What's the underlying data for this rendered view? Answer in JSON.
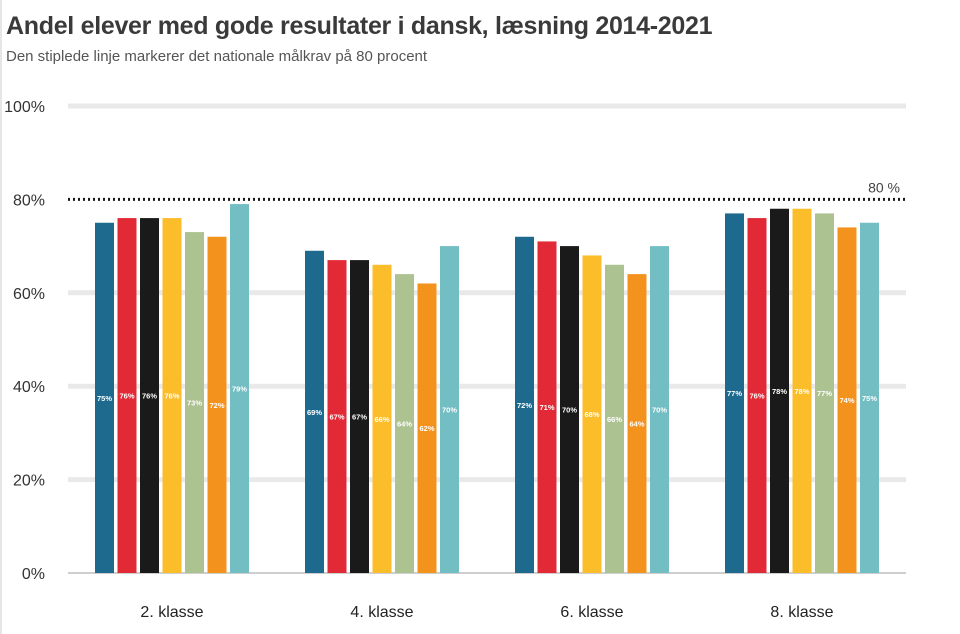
{
  "header": {
    "title": "Andel elever med gode resultater i dansk, læsning 2014-2021",
    "subtitle": "Den stiplede linje markerer det nationale målkrav på 80 procent"
  },
  "chart_data": {
    "type": "bar",
    "title": "Andel elever med gode resultater i dansk, læsning 2014-2021",
    "subtitle": "Den stiplede linje markerer det nationale målkrav på 80 procent",
    "categories": [
      "2. klasse",
      "4. klasse",
      "6. klasse",
      "8. klasse"
    ],
    "series": [
      {
        "values": [
          75,
          69,
          72,
          77
        ],
        "color": "#1d6a8e"
      },
      {
        "values": [
          76,
          67,
          71,
          76
        ],
        "color": "#e22a37"
      },
      {
        "values": [
          76,
          67,
          70,
          78
        ],
        "color": "#1a1a1a"
      },
      {
        "values": [
          76,
          66,
          68,
          78
        ],
        "color": "#fbbd2a"
      },
      {
        "values": [
          73,
          64,
          66,
          77
        ],
        "color": "#adc291"
      },
      {
        "values": [
          72,
          62,
          64,
          74
        ],
        "color": "#f3931e"
      },
      {
        "values": [
          79,
          70,
          70,
          75
        ],
        "color": "#72bec3"
      }
    ],
    "ylim": [
      0,
      100
    ],
    "yticks": [
      0,
      20,
      40,
      60,
      80,
      100
    ],
    "ytick_labels": [
      "0%",
      "20%",
      "40%",
      "60%",
      "80%",
      "100%"
    ],
    "reference_line": {
      "value": 80,
      "label": "80 %",
      "style": "dotted"
    },
    "grid": true,
    "legend": "none"
  }
}
